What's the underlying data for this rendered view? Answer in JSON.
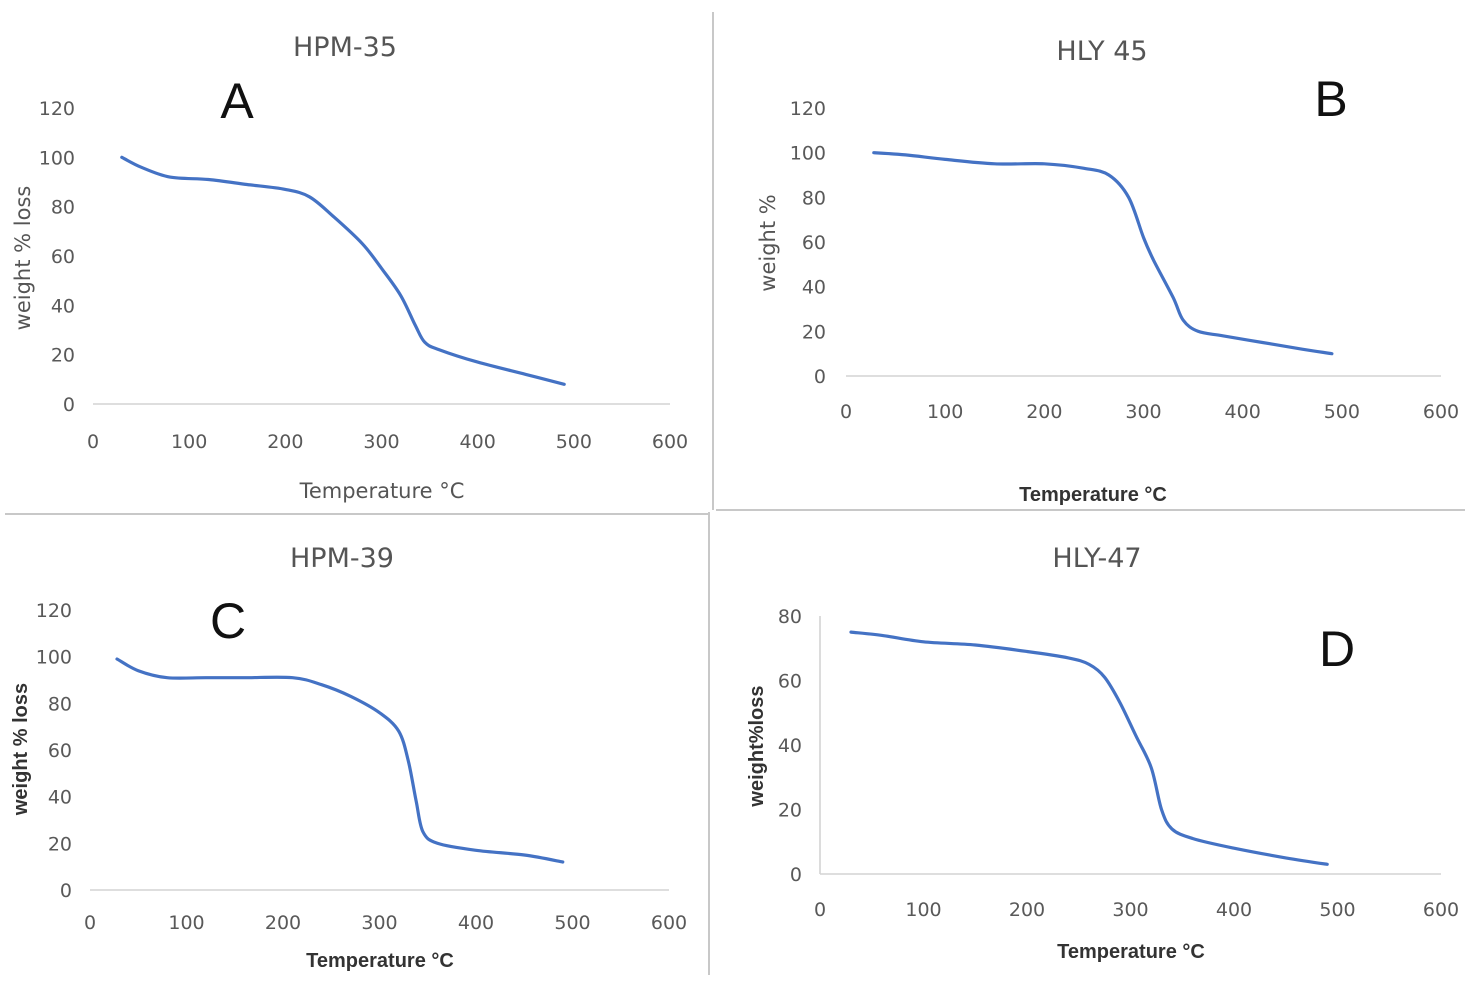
{
  "chart_data": [
    {
      "type": "line",
      "title": "HPM-35",
      "panel_label": "A",
      "xlabel": "Temperature °C",
      "ylabel": "weight % loss",
      "xlim": [
        0,
        600
      ],
      "ylim": [
        0,
        120
      ],
      "x_ticks": [
        "0",
        "100",
        "200",
        "300",
        "400",
        "500",
        "600"
      ],
      "y_ticks": [
        "0",
        "20",
        "40",
        "60",
        "80",
        "100",
        "120"
      ],
      "series": [
        {
          "name": "HPM-35",
          "x": [
            30,
            50,
            80,
            120,
            160,
            200,
            225,
            250,
            280,
            300,
            320,
            335,
            345,
            360,
            400,
            450,
            490
          ],
          "y": [
            100,
            96,
            92,
            91,
            89,
            87,
            84,
            76,
            65,
            55,
            44,
            32,
            25,
            22,
            17,
            12,
            8
          ]
        }
      ]
    },
    {
      "type": "line",
      "title": "HLY 45",
      "panel_label": "B",
      "xlabel": "Temperature °C",
      "ylabel": "weight %",
      "xlim": [
        0,
        600
      ],
      "ylim": [
        0,
        120
      ],
      "x_ticks": [
        "0",
        "100",
        "200",
        "300",
        "400",
        "500",
        "600"
      ],
      "y_ticks": [
        "0",
        "20",
        "40",
        "60",
        "80",
        "100",
        "120"
      ],
      "series": [
        {
          "name": "HLY 45",
          "x": [
            28,
            60,
            100,
            150,
            200,
            240,
            265,
            285,
            300,
            310,
            330,
            340,
            355,
            380,
            420,
            460,
            490
          ],
          "y": [
            100,
            99,
            97,
            95,
            95,
            93,
            90,
            80,
            62,
            52,
            35,
            25,
            20,
            18,
            15,
            12,
            10
          ]
        }
      ]
    },
    {
      "type": "line",
      "title": "HPM-39",
      "panel_label": "C",
      "xlabel": "Temperature °C",
      "ylabel": "weight % loss",
      "xlim": [
        0,
        600
      ],
      "ylim": [
        0,
        120
      ],
      "x_ticks": [
        "0",
        "100",
        "200",
        "300",
        "400",
        "500",
        "600"
      ],
      "y_ticks": [
        "0",
        "20",
        "40",
        "60",
        "80",
        "100",
        "120"
      ],
      "series": [
        {
          "name": "HPM-39",
          "x": [
            28,
            50,
            80,
            120,
            160,
            210,
            240,
            270,
            300,
            320,
            330,
            338,
            345,
            360,
            400,
            450,
            490
          ],
          "y": [
            99,
            94,
            91,
            91,
            91,
            91,
            88,
            83,
            76,
            68,
            55,
            38,
            25,
            20,
            17,
            15,
            12
          ]
        }
      ]
    },
    {
      "type": "line",
      "title": "HLY-47",
      "panel_label": "D",
      "xlabel": "Temperature °C",
      "ylabel": "weight%loss",
      "xlim": [
        0,
        600
      ],
      "ylim": [
        0,
        80
      ],
      "x_ticks": [
        "0",
        "100",
        "200",
        "300",
        "400",
        "500",
        "600"
      ],
      "y_ticks": [
        "0",
        "20",
        "40",
        "60",
        "80"
      ],
      "series": [
        {
          "name": "HLY-47",
          "x": [
            30,
            60,
            100,
            150,
            200,
            240,
            260,
            275,
            290,
            305,
            320,
            330,
            340,
            360,
            400,
            450,
            490
          ],
          "y": [
            75,
            74,
            72,
            71,
            69,
            67,
            65,
            61,
            53,
            43,
            33,
            20,
            14,
            11,
            8,
            5,
            3
          ]
        }
      ]
    }
  ]
}
